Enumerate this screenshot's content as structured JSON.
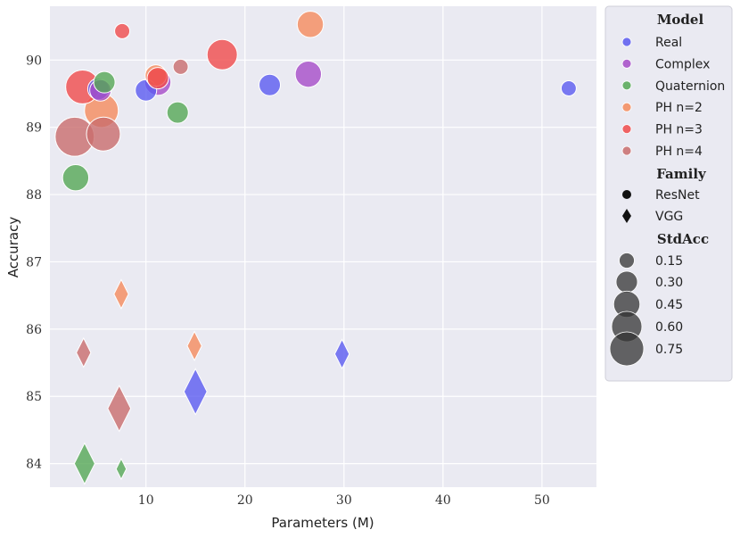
{
  "chart_data": {
    "type": "scatter",
    "xlabel": "Parameters (M)",
    "ylabel": "Accuracy",
    "xlim": [
      0.3,
      55.5
    ],
    "ylim": [
      83.65,
      90.8
    ],
    "xticks": [
      10,
      20,
      30,
      40,
      50
    ],
    "yticks": [
      84,
      85,
      86,
      87,
      88,
      89,
      90
    ],
    "grid": true,
    "legend_position": "right",
    "colors": {
      "Real": "#5B5BF0",
      "Complex": "#A64CC8",
      "Quaternion": "#55A855",
      "PH n=2": "#F58B5C",
      "PH n=3": "#F04B4B",
      "PH n=4": "#C96D6D"
    },
    "points": [
      {
        "model": "Real",
        "family": "ResNet",
        "x": 10.0,
        "y": 89.55,
        "std": 0.3
      },
      {
        "model": "Real",
        "family": "ResNet",
        "x": 22.5,
        "y": 89.63,
        "std": 0.3
      },
      {
        "model": "Real",
        "family": "ResNet",
        "x": 52.7,
        "y": 89.58,
        "std": 0.15
      },
      {
        "model": "Real",
        "family": "ResNet",
        "x": 5.2,
        "y": 89.57,
        "std": 0.3
      },
      {
        "model": "Real",
        "family": "VGG",
        "x": 15.0,
        "y": 85.07,
        "std": 0.75
      },
      {
        "model": "Real",
        "family": "VGG",
        "x": 29.8,
        "y": 85.63,
        "std": 0.3
      },
      {
        "model": "Complex",
        "family": "ResNet",
        "x": 26.4,
        "y": 89.79,
        "std": 0.45
      },
      {
        "model": "Complex",
        "family": "ResNet",
        "x": 11.2,
        "y": 89.67,
        "std": 0.45
      },
      {
        "model": "Complex",
        "family": "ResNet",
        "x": 5.4,
        "y": 89.55,
        "std": 0.3
      },
      {
        "model": "Quaternion",
        "family": "ResNet",
        "x": 5.8,
        "y": 89.67,
        "std": 0.3
      },
      {
        "model": "Quaternion",
        "family": "ResNet",
        "x": 13.2,
        "y": 89.22,
        "std": 0.3
      },
      {
        "model": "Quaternion",
        "family": "ResNet",
        "x": 2.9,
        "y": 88.25,
        "std": 0.45
      },
      {
        "model": "Quaternion",
        "family": "VGG",
        "x": 3.8,
        "y": 84.0,
        "std": 0.6
      },
      {
        "model": "Quaternion",
        "family": "VGG",
        "x": 7.5,
        "y": 83.92,
        "std": 0.15
      },
      {
        "model": "PH n=2",
        "family": "ResNet",
        "x": 26.6,
        "y": 90.53,
        "std": 0.45
      },
      {
        "model": "PH n=2",
        "family": "ResNet",
        "x": 11.0,
        "y": 89.77,
        "std": 0.3
      },
      {
        "model": "PH n=2",
        "family": "ResNet",
        "x": 5.5,
        "y": 89.25,
        "std": 0.75
      },
      {
        "model": "PH n=2",
        "family": "VGG",
        "x": 7.5,
        "y": 86.52,
        "std": 0.3
      },
      {
        "model": "PH n=2",
        "family": "VGG",
        "x": 14.9,
        "y": 85.75,
        "std": 0.3
      },
      {
        "model": "PH n=3",
        "family": "ResNet",
        "x": 7.6,
        "y": 90.43,
        "std": 0.15
      },
      {
        "model": "PH n=3",
        "family": "ResNet",
        "x": 17.7,
        "y": 90.08,
        "std": 0.6
      },
      {
        "model": "PH n=3",
        "family": "ResNet",
        "x": 11.2,
        "y": 89.73,
        "std": 0.3
      },
      {
        "model": "PH n=3",
        "family": "ResNet",
        "x": 3.6,
        "y": 89.6,
        "std": 0.75
      },
      {
        "model": "PH n=4",
        "family": "ResNet",
        "x": 13.5,
        "y": 89.9,
        "std": 0.15
      },
      {
        "model": "PH n=4",
        "family": "ResNet",
        "x": 2.8,
        "y": 88.86,
        "std": 1.0
      },
      {
        "model": "PH n=4",
        "family": "ResNet",
        "x": 5.7,
        "y": 88.9,
        "std": 0.75
      },
      {
        "model": "PH n=4",
        "family": "VGG",
        "x": 3.7,
        "y": 85.65,
        "std": 0.3
      },
      {
        "model": "PH n=4",
        "family": "VGG",
        "x": 7.3,
        "y": 84.82,
        "std": 0.75
      }
    ],
    "legend": {
      "model_title": "Model",
      "models": [
        "Real",
        "Complex",
        "Quaternion",
        "PH n=2",
        "PH n=3",
        "PH n=4"
      ],
      "family_title": "Family",
      "families": [
        "ResNet",
        "VGG"
      ],
      "size_title": "StdAcc",
      "sizes": [
        "0.15",
        "0.30",
        "0.45",
        "0.60",
        "0.75"
      ]
    }
  }
}
